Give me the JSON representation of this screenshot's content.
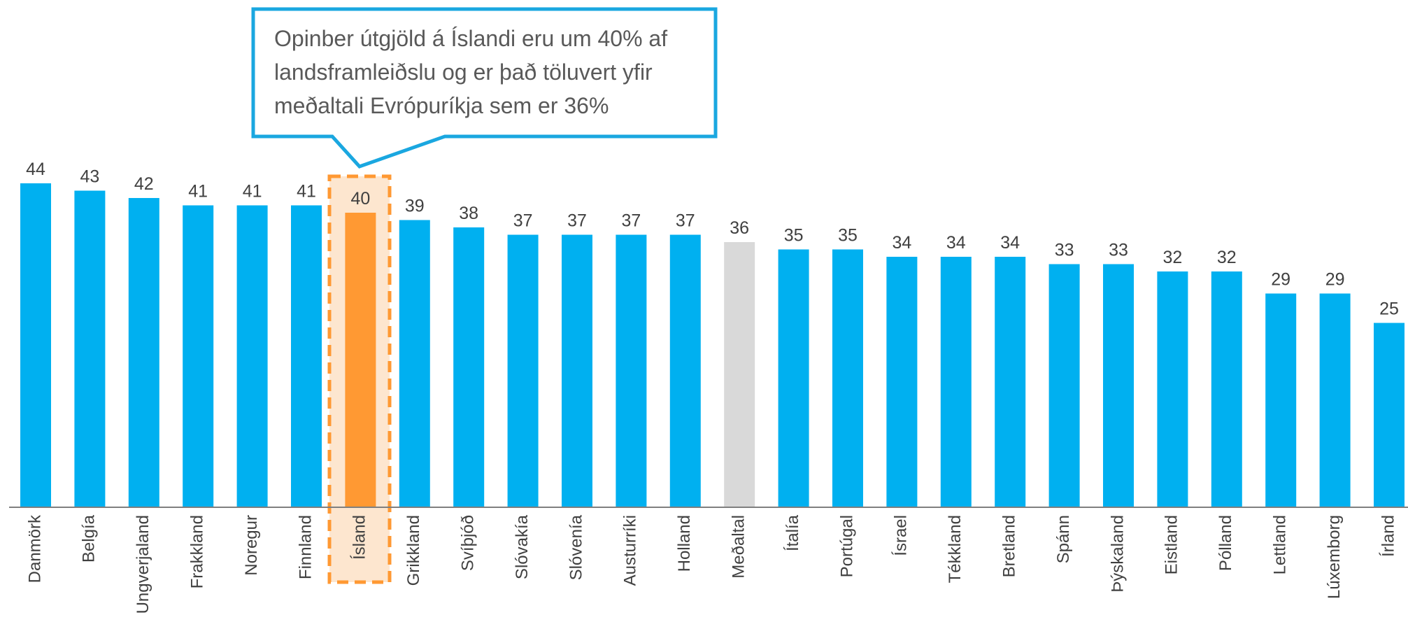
{
  "chart_data": {
    "type": "bar",
    "annotation": [
      "Opinber útgjöld á Íslandi eru um 40% af",
      "landsframleiðslu og er það töluvert yfir",
      "meðaltali Evrópuríkja sem er 36%"
    ],
    "categories": [
      "Danmörk",
      "Belgía",
      "Ungverjaland",
      "Frakkland",
      "Noregur",
      "Finnland",
      "Ísland",
      "Grikkland",
      "Svíþjóð",
      "Slóvakía",
      "Slóvenía",
      "Austurríki",
      "Holland",
      "Meðaltal",
      "Ítalía",
      "Portúgal",
      "Ísrael",
      "Tékkland",
      "Bretland",
      "Spánn",
      "Þýskaland",
      "Eistland",
      "Pólland",
      "Lettland",
      "Lúxemborg",
      "Írland"
    ],
    "values": [
      44,
      43,
      42,
      41,
      41,
      41,
      40,
      39,
      38,
      37,
      37,
      37,
      37,
      36,
      35,
      35,
      34,
      34,
      34,
      33,
      33,
      32,
      32,
      29,
      29,
      25
    ],
    "colors": [
      "#00b0f0",
      "#00b0f0",
      "#00b0f0",
      "#00b0f0",
      "#00b0f0",
      "#00b0f0",
      "#ff9933",
      "#00b0f0",
      "#00b0f0",
      "#00b0f0",
      "#00b0f0",
      "#00b0f0",
      "#00b0f0",
      "#d9d9d9",
      "#00b0f0",
      "#00b0f0",
      "#00b0f0",
      "#00b0f0",
      "#00b0f0",
      "#00b0f0",
      "#00b0f0",
      "#00b0f0",
      "#00b0f0",
      "#00b0f0",
      "#00b0f0",
      "#00b0f0"
    ]
  }
}
